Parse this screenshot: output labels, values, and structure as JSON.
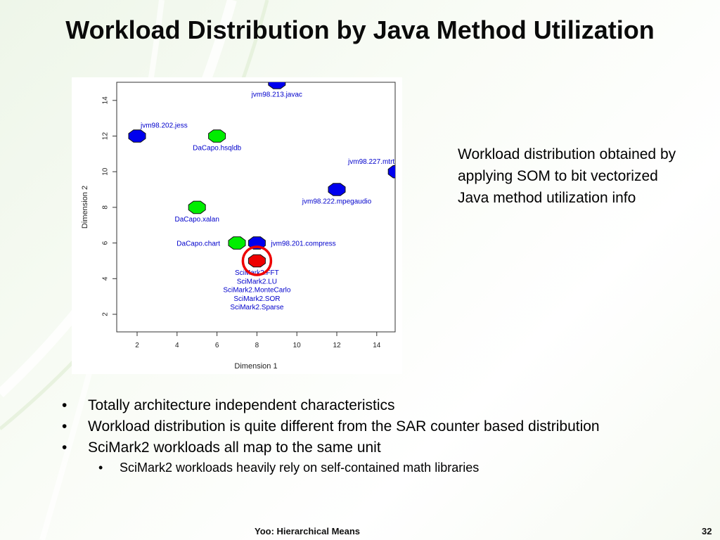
{
  "slide": {
    "title": "Workload Distribution by Java Method Utilization",
    "side_note": "Workload distribution obtained by applying SOM to bit vectorized Java method utilization info",
    "bullets": [
      {
        "text": "Totally architecture independent characteristics",
        "level": 1
      },
      {
        "text": "Workload distribution is quite different from the SAR counter based distribution",
        "level": 1
      },
      {
        "text": "SciMark2 workloads all map to the same unit",
        "level": 1
      },
      {
        "text": "SciMark2 workloads heavily rely on self-contained math libraries",
        "level": 2
      }
    ],
    "footer": {
      "center": "Yoo: Hierarchical Means",
      "page": "32"
    }
  },
  "colors": {
    "blue": "#0000ee",
    "green": "#00ee00",
    "red": "#ee0000",
    "label": "#0000cc",
    "highlight": "#ee0000"
  },
  "chart_data": {
    "type": "scatter",
    "xlabel": "Dimension 1",
    "ylabel": "Dimension 2",
    "xlim": [
      1,
      15
    ],
    "ylim": [
      1,
      15
    ],
    "xticks": [
      2,
      4,
      6,
      8,
      10,
      12,
      14
    ],
    "yticks": [
      2,
      4,
      6,
      8,
      10,
      12,
      14
    ],
    "points": [
      {
        "x": 9,
        "y": 15,
        "color": "blue",
        "labels": [
          "jvm98.213.javac"
        ],
        "label_pos": "below"
      },
      {
        "x": 2,
        "y": 12,
        "color": "blue",
        "labels": [
          "jvm98.202.jess"
        ],
        "label_pos": "above-right"
      },
      {
        "x": 6,
        "y": 12,
        "color": "green",
        "labels": [
          "DaCapo.hsqldb"
        ],
        "label_pos": "below"
      },
      {
        "x": 15,
        "y": 10,
        "color": "blue",
        "labels": [
          "jvm98.227.mtrt"
        ],
        "label_pos": "above-left"
      },
      {
        "x": 12,
        "y": 9,
        "color": "blue",
        "labels": [
          "jvm98.222.mpegaudio"
        ],
        "label_pos": "below"
      },
      {
        "x": 5,
        "y": 8,
        "color": "green",
        "labels": [
          "DaCapo.xalan"
        ],
        "label_pos": "below"
      },
      {
        "x": 7,
        "y": 6,
        "color": "green",
        "labels": [
          "DaCapo.chart"
        ],
        "label_pos": "left"
      },
      {
        "x": 8,
        "y": 6,
        "color": "blue",
        "labels": [
          "jvm98.201.compress"
        ],
        "label_pos": "right"
      },
      {
        "x": 8,
        "y": 5,
        "color": "red",
        "labels": [
          "SciMark2.FFT",
          "SciMark2.LU",
          "SciMark2.MonteCarlo",
          "SciMark2.SOR",
          "SciMark2.Sparse"
        ],
        "label_pos": "below",
        "highlighted": true
      }
    ]
  }
}
